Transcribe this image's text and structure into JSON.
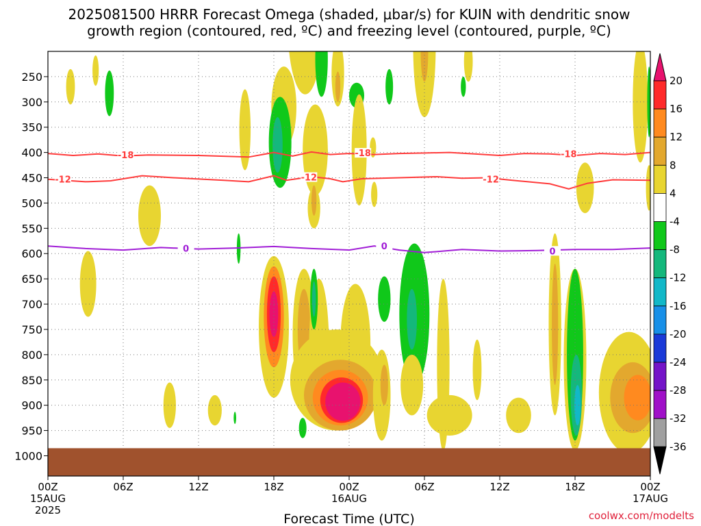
{
  "chart_data": {
    "type": "heatmap",
    "title_line1": "2025081500 HRRR Forecast Omega (shaded, μbar/s) for KUIN with dendritic snow",
    "title_line2": "growth region (contoured, red, ºC) and freezing level (contoured, purple, ºC)",
    "xlabel": "Forecast Time (UTC)",
    "credit": "coolwx.com/modelts",
    "x_range_hours": [
      0,
      48
    ],
    "y_range_hpa": [
      200,
      1040
    ],
    "x_ticks": [
      {
        "hour": 0,
        "label": "00Z",
        "sub1": "15AUG",
        "sub2": "2025"
      },
      {
        "hour": 6,
        "label": "06Z",
        "sub1": "",
        "sub2": ""
      },
      {
        "hour": 12,
        "label": "12Z",
        "sub1": "",
        "sub2": ""
      },
      {
        "hour": 18,
        "label": "18Z",
        "sub1": "",
        "sub2": ""
      },
      {
        "hour": 24,
        "label": "00Z",
        "sub1": "16AUG",
        "sub2": ""
      },
      {
        "hour": 30,
        "label": "06Z",
        "sub1": "",
        "sub2": ""
      },
      {
        "hour": 36,
        "label": "12Z",
        "sub1": "",
        "sub2": ""
      },
      {
        "hour": 42,
        "label": "18Z",
        "sub1": "",
        "sub2": ""
      },
      {
        "hour": 48,
        "label": "00Z",
        "sub1": "17AUG",
        "sub2": ""
      }
    ],
    "y_ticks": [
      250,
      300,
      350,
      400,
      450,
      500,
      550,
      600,
      650,
      700,
      750,
      800,
      850,
      900,
      950,
      1000
    ],
    "grid": "dotted",
    "ground_level_hpa": 985,
    "ground_color": "#a0522d",
    "colorbar": {
      "placement": "right",
      "ticks": [
        "20",
        "16",
        "12",
        "8",
        "4",
        "-4",
        "-8",
        "-12",
        "-16",
        "-20",
        "-24",
        "-28",
        "-32",
        "-36"
      ],
      "colors_top_to_bottom": [
        "#e8126e",
        "#ff2a2a",
        "#ff8a1f",
        "#e3a82e",
        "#e8d531",
        "#ffffff",
        "#10c81a",
        "#14b87c",
        "#12b8c8",
        "#1890e8",
        "#1a3ad8",
        "#7414c8",
        "#a010c8",
        "#a0a0a0",
        "#000000"
      ]
    },
    "contours": [
      {
        "name": "-18",
        "color": "#ff3b3b",
        "points": [
          [
            0,
            402
          ],
          [
            2,
            406
          ],
          [
            4,
            403
          ],
          [
            6,
            407
          ],
          [
            8,
            405
          ],
          [
            12,
            406
          ],
          [
            16,
            409
          ],
          [
            18,
            400
          ],
          [
            19.5,
            407
          ],
          [
            21,
            399
          ],
          [
            22.5,
            404
          ],
          [
            24,
            402
          ],
          [
            26,
            404
          ],
          [
            28,
            402
          ],
          [
            30,
            401
          ],
          [
            32,
            400
          ],
          [
            34,
            403
          ],
          [
            36,
            406
          ],
          [
            38,
            402
          ],
          [
            40,
            403
          ],
          [
            42,
            406
          ],
          [
            44,
            402
          ],
          [
            46,
            404
          ],
          [
            48,
            400
          ]
        ],
        "labels": [
          [
            6,
            405
          ],
          " "
        ],
        "label_at": [
          [
            6.2,
            406
          ],
          [
            25.1,
            402
          ],
          [
            41.5,
            404
          ]
        ]
      },
      {
        "name": "-12",
        "color": "#ff3b3b",
        "points": [
          [
            0,
            453
          ],
          [
            3,
            458
          ],
          [
            5,
            456
          ],
          [
            7.5,
            446
          ],
          [
            10,
            450
          ],
          [
            14,
            455
          ],
          [
            16,
            458
          ],
          [
            18,
            446
          ],
          [
            19,
            455
          ],
          [
            21,
            448
          ],
          [
            22.5,
            452
          ],
          [
            23.5,
            458
          ],
          [
            25,
            452
          ],
          [
            28,
            450
          ],
          [
            31,
            448
          ],
          [
            33,
            451
          ],
          [
            35,
            450
          ],
          [
            37,
            455
          ],
          [
            40,
            462
          ],
          [
            41.5,
            472
          ],
          [
            43,
            461
          ],
          [
            45,
            454
          ],
          [
            48,
            455
          ]
        ],
        "label_at": [
          [
            1.2,
            454
          ],
          [
            20.8,
            450
          ],
          [
            35.3,
            454
          ]
        ]
      },
      {
        "name": "0",
        "color": "#a01cd6",
        "points": [
          [
            0,
            585
          ],
          [
            3,
            590
          ],
          [
            6,
            593
          ],
          [
            9,
            588
          ],
          [
            12,
            591
          ],
          [
            15,
            589
          ],
          [
            18,
            586
          ],
          [
            21,
            590
          ],
          [
            24,
            593
          ],
          [
            26,
            585
          ],
          [
            28,
            593
          ],
          [
            30,
            598
          ],
          [
            33,
            592
          ],
          [
            36,
            595
          ],
          [
            39,
            594
          ],
          [
            42,
            592
          ],
          [
            45,
            592
          ],
          [
            48,
            589
          ]
        ],
        "label_at": [
          [
            11,
            591
          ],
          [
            26.8,
            586
          ],
          [
            40.2,
            596
          ]
        ]
      }
    ],
    "omega_blobs": [
      {
        "color": "#e8d531",
        "cx": 1.8,
        "cy": 270,
        "rx": 0.35,
        "ry": 35
      },
      {
        "color": "#e8d531",
        "cx": 3.8,
        "cy": 238,
        "rx": 0.25,
        "ry": 30
      },
      {
        "color": "#10c81a",
        "cx": 4.9,
        "cy": 283,
        "rx": 0.35,
        "ry": 45
      },
      {
        "color": "#e8d531",
        "cx": 15.7,
        "cy": 355,
        "rx": 0.45,
        "ry": 80
      },
      {
        "color": "#e8d531",
        "cx": 18.8,
        "cy": 310,
        "rx": 1.0,
        "ry": 80
      },
      {
        "color": "#e8d531",
        "cx": 20.5,
        "cy": 145,
        "rx": 1.4,
        "ry": 140
      },
      {
        "color": "#10c81a",
        "cx": 18.5,
        "cy": 380,
        "rx": 0.9,
        "ry": 90
      },
      {
        "color": "#14b87c",
        "cx": 18.3,
        "cy": 385,
        "rx": 0.4,
        "ry": 55
      },
      {
        "color": "#10c81a",
        "cx": 21.6,
        "cy": 400,
        "rx": 0.7,
        "ry": 40
      },
      {
        "color": "#10c81a",
        "cx": 21.8,
        "cy": 215,
        "rx": 0.5,
        "ry": 75
      },
      {
        "color": "#e8d531",
        "cx": 21.3,
        "cy": 395,
        "rx": 1.0,
        "ry": 90
      },
      {
        "color": "#e8d531",
        "cx": 23.1,
        "cy": 244,
        "rx": 0.5,
        "ry": 65
      },
      {
        "color": "#e3a82e",
        "cx": 23.1,
        "cy": 270,
        "rx": 0.2,
        "ry": 30
      },
      {
        "color": "#10c81a",
        "cx": 24.6,
        "cy": 287,
        "rx": 0.6,
        "ry": 25
      },
      {
        "color": "#e8d531",
        "cx": 24.8,
        "cy": 395,
        "rx": 0.6,
        "ry": 110
      },
      {
        "color": "#10c81a",
        "cx": 27.2,
        "cy": 270,
        "rx": 0.3,
        "ry": 35
      },
      {
        "color": "#e8d531",
        "cx": 30.0,
        "cy": 190,
        "rx": 0.9,
        "ry": 140
      },
      {
        "color": "#e3a82e",
        "cx": 30.0,
        "cy": 200,
        "rx": 0.3,
        "ry": 60
      },
      {
        "color": "#e8d531",
        "cx": 33.5,
        "cy": 220,
        "rx": 0.35,
        "ry": 40
      },
      {
        "color": "#10c81a",
        "cx": 33.1,
        "cy": 270,
        "rx": 0.2,
        "ry": 20
      },
      {
        "color": "#e8d531",
        "cx": 8.1,
        "cy": 525,
        "rx": 0.9,
        "ry": 60
      },
      {
        "color": "#e8d531",
        "cx": 21.2,
        "cy": 510,
        "rx": 0.5,
        "ry": 40
      },
      {
        "color": "#e3a82e",
        "cx": 21.2,
        "cy": 495,
        "rx": 0.2,
        "ry": 30
      },
      {
        "color": "#e8d531",
        "cx": 25.9,
        "cy": 390,
        "rx": 0.25,
        "ry": 20
      },
      {
        "color": "#e8d531",
        "cx": 26.0,
        "cy": 483,
        "rx": 0.25,
        "ry": 25
      },
      {
        "color": "#10c81a",
        "cx": 15.2,
        "cy": 590,
        "rx": 0.15,
        "ry": 30
      },
      {
        "color": "#e8d531",
        "cx": 42.8,
        "cy": 470,
        "rx": 0.7,
        "ry": 50
      },
      {
        "color": "#e8d531",
        "cx": 47.2,
        "cy": 300,
        "rx": 0.6,
        "ry": 120
      },
      {
        "color": "#e8d531",
        "cx": 47.9,
        "cy": 470,
        "rx": 0.25,
        "ry": 45
      },
      {
        "color": "#10c81a",
        "cx": 47.9,
        "cy": 300,
        "rx": 0.15,
        "ry": 70
      },
      {
        "color": "#e8d531",
        "cx": 3.2,
        "cy": 660,
        "rx": 0.65,
        "ry": 65
      },
      {
        "color": "#e8d531",
        "cx": 9.7,
        "cy": 900,
        "rx": 0.5,
        "ry": 45
      },
      {
        "color": "#e8d531",
        "cx": 13.3,
        "cy": 910,
        "rx": 0.55,
        "ry": 30
      },
      {
        "color": "#10c81a",
        "cx": 14.9,
        "cy": 925,
        "rx": 0.1,
        "ry": 12
      },
      {
        "color": "#e8d531",
        "cx": 18.0,
        "cy": 745,
        "rx": 1.2,
        "ry": 140
      },
      {
        "color": "#ff8a1f",
        "cx": 18.0,
        "cy": 725,
        "rx": 0.8,
        "ry": 100
      },
      {
        "color": "#ff2a2a",
        "cx": 18.0,
        "cy": 720,
        "rx": 0.55,
        "ry": 75
      },
      {
        "color": "#e8126e",
        "cx": 18.0,
        "cy": 720,
        "rx": 0.35,
        "ry": 45
      },
      {
        "color": "#e8d531",
        "cx": 20.4,
        "cy": 760,
        "rx": 0.9,
        "ry": 130
      },
      {
        "color": "#e3a82e",
        "cx": 20.4,
        "cy": 750,
        "rx": 0.5,
        "ry": 80
      },
      {
        "color": "#10c81a",
        "cx": 20.3,
        "cy": 945,
        "rx": 0.3,
        "ry": 20
      },
      {
        "color": "#e8d531",
        "cx": 23.0,
        "cy": 850,
        "rx": 3.7,
        "ry": 100
      },
      {
        "color": "#e8d531",
        "cx": 24.5,
        "cy": 780,
        "rx": 1.2,
        "ry": 120
      },
      {
        "color": "#e8d531",
        "cx": 21.6,
        "cy": 790,
        "rx": 0.8,
        "ry": 140
      },
      {
        "color": "#e3a82e",
        "cx": 23.3,
        "cy": 880,
        "rx": 2.9,
        "ry": 70
      },
      {
        "color": "#ff8a1f",
        "cx": 23.3,
        "cy": 885,
        "rx": 2.2,
        "ry": 55
      },
      {
        "color": "#ff2a2a",
        "cx": 23.4,
        "cy": 890,
        "rx": 1.7,
        "ry": 45
      },
      {
        "color": "#e8126e",
        "cx": 23.5,
        "cy": 893,
        "rx": 1.4,
        "ry": 38
      },
      {
        "color": "#10c81a",
        "cx": 21.2,
        "cy": 690,
        "rx": 0.3,
        "ry": 60
      },
      {
        "color": "#14b87c",
        "cx": 21.2,
        "cy": 690,
        "rx": 0.15,
        "ry": 35
      },
      {
        "color": "#e8d531",
        "cx": 26.6,
        "cy": 880,
        "rx": 0.7,
        "ry": 90
      },
      {
        "color": "#e3a82e",
        "cx": 26.8,
        "cy": 860,
        "rx": 0.3,
        "ry": 40
      },
      {
        "color": "#10c81a",
        "cx": 26.8,
        "cy": 690,
        "rx": 0.5,
        "ry": 45
      },
      {
        "color": "#10c81a",
        "cx": 29.2,
        "cy": 720,
        "rx": 1.2,
        "ry": 140
      },
      {
        "color": "#14b87c",
        "cx": 29.0,
        "cy": 730,
        "rx": 0.4,
        "ry": 60
      },
      {
        "color": "#e8d531",
        "cx": 29.0,
        "cy": 860,
        "rx": 0.9,
        "ry": 60
      },
      {
        "color": "#e8d531",
        "cx": 31.5,
        "cy": 820,
        "rx": 0.5,
        "ry": 170
      },
      {
        "color": "#e8d531",
        "cx": 32.0,
        "cy": 920,
        "rx": 1.8,
        "ry": 40
      },
      {
        "color": "#e8d531",
        "cx": 34.2,
        "cy": 830,
        "rx": 0.35,
        "ry": 60
      },
      {
        "color": "#e8d531",
        "cx": 37.5,
        "cy": 920,
        "rx": 1.0,
        "ry": 35
      },
      {
        "color": "#e8d531",
        "cx": 40.4,
        "cy": 740,
        "rx": 0.5,
        "ry": 180
      },
      {
        "color": "#e3a82e",
        "cx": 40.4,
        "cy": 740,
        "rx": 0.25,
        "ry": 120
      },
      {
        "color": "#e8d531",
        "cx": 42.0,
        "cy": 810,
        "rx": 0.9,
        "ry": 180
      },
      {
        "color": "#10c81a",
        "cx": 42.0,
        "cy": 800,
        "rx": 0.65,
        "ry": 170
      },
      {
        "color": "#14b87c",
        "cx": 42.1,
        "cy": 880,
        "rx": 0.45,
        "ry": 80
      },
      {
        "color": "#12b8c8",
        "cx": 42.2,
        "cy": 900,
        "rx": 0.25,
        "ry": 40
      },
      {
        "color": "#e8d531",
        "cx": 46.3,
        "cy": 875,
        "rx": 2.4,
        "ry": 120
      },
      {
        "color": "#e3a82e",
        "cx": 46.6,
        "cy": 885,
        "rx": 1.8,
        "ry": 70
      },
      {
        "color": "#ff8a1f",
        "cx": 47.0,
        "cy": 885,
        "rx": 1.1,
        "ry": 45
      }
    ]
  }
}
